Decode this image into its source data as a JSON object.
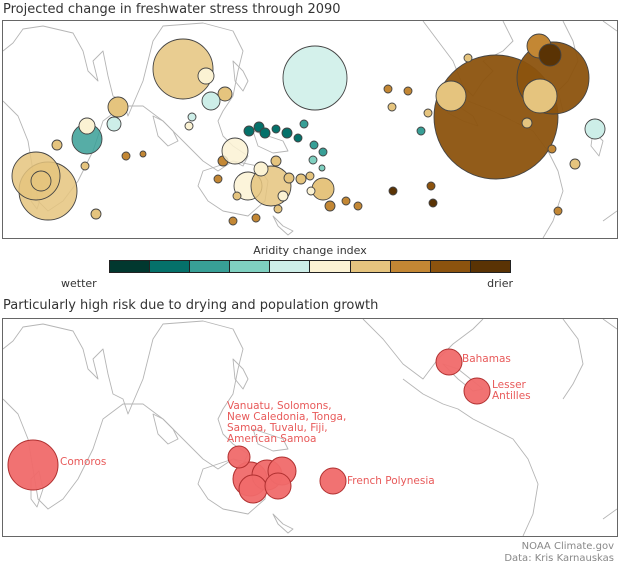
{
  "top_panel": {
    "title": "Projected change in freshwater stress through 2090"
  },
  "legend": {
    "title": "Aridity change index",
    "left_label": "wetter",
    "right_label": "drier",
    "colors": [
      "#01382f",
      "#05716a",
      "#389f96",
      "#7fd0c0",
      "#cdeee8",
      "#fbf2d3",
      "#e5c47e",
      "#c38734",
      "#8c530e",
      "#5a3304"
    ]
  },
  "bottom_panel": {
    "title": "Particularly high risk due to drying and population growth",
    "fill_color": "#f06a6a",
    "labels": {
      "comoros": "Comoros",
      "pacific": [
        "Vanuatu, Solomons,",
        "New Caledonia, Tonga,",
        "Samoa, Tuvalu, Fiji,",
        "American Samoa"
      ],
      "french_polynesia": "French Polynesia",
      "bahamas": "Bahamas",
      "lesser_antilles": [
        "Lesser",
        "Antilles"
      ]
    }
  },
  "credit": {
    "line1": "NOAA Climate.gov",
    "line2": "Data: Kris Karnauskas"
  }
}
